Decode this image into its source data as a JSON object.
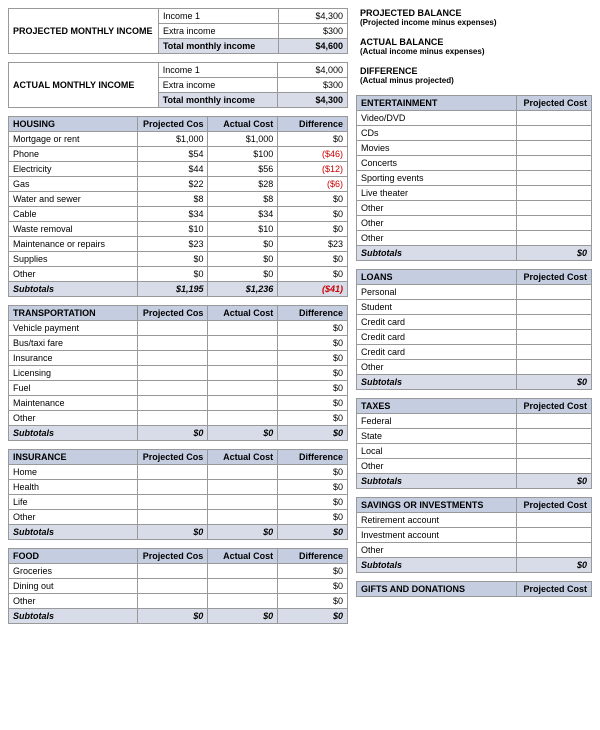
{
  "projectedIncome": {
    "label": "PROJECTED MONTHLY INCOME",
    "rows": [
      {
        "name": "Income 1",
        "value": "$4,300"
      },
      {
        "name": "Extra income",
        "value": "$300"
      }
    ],
    "totalLabel": "Total monthly income",
    "totalValue": "$4,600"
  },
  "actualIncome": {
    "label": "ACTUAL MONTHLY INCOME",
    "rows": [
      {
        "name": "Income 1",
        "value": "$4,000"
      },
      {
        "name": "Extra income",
        "value": "$300"
      }
    ],
    "totalLabel": "Total monthly income",
    "totalValue": "$4,300"
  },
  "balances": [
    {
      "title": "PROJECTED BALANCE",
      "sub": "(Projected income minus expenses)"
    },
    {
      "title": "ACTUAL BALANCE",
      "sub": "(Actual income minus expenses)"
    },
    {
      "title": "DIFFERENCE",
      "sub": "(Actual minus projected)"
    }
  ],
  "headers": {
    "projCost": "Projected Cost",
    "actCost": "Actual Cost",
    "diff": "Difference",
    "subtotals": "Subtotals"
  },
  "leftCategories": [
    {
      "name": "HOUSING",
      "rows": [
        {
          "label": "Mortgage or rent",
          "proj": "$1,000",
          "act": "$1,000",
          "diff": "$0",
          "neg": false
        },
        {
          "label": "Phone",
          "proj": "$54",
          "act": "$100",
          "diff": "($46)",
          "neg": true
        },
        {
          "label": "Electricity",
          "proj": "$44",
          "act": "$56",
          "diff": "($12)",
          "neg": true
        },
        {
          "label": "Gas",
          "proj": "$22",
          "act": "$28",
          "diff": "($6)",
          "neg": true
        },
        {
          "label": "Water and sewer",
          "proj": "$8",
          "act": "$8",
          "diff": "$0",
          "neg": false
        },
        {
          "label": "Cable",
          "proj": "$34",
          "act": "$34",
          "diff": "$0",
          "neg": false
        },
        {
          "label": "Waste removal",
          "proj": "$10",
          "act": "$10",
          "diff": "$0",
          "neg": false
        },
        {
          "label": "Maintenance or repairs",
          "proj": "$23",
          "act": "$0",
          "diff": "$23",
          "neg": false
        },
        {
          "label": "Supplies",
          "proj": "$0",
          "act": "$0",
          "diff": "$0",
          "neg": false
        },
        {
          "label": "Other",
          "proj": "$0",
          "act": "$0",
          "diff": "$0",
          "neg": false
        }
      ],
      "subProj": "$1,195",
      "subAct": "$1,236",
      "subDiff": "($41)",
      "subNeg": true
    },
    {
      "name": "TRANSPORTATION",
      "rows": [
        {
          "label": "Vehicle payment",
          "proj": "",
          "act": "",
          "diff": "$0",
          "neg": false
        },
        {
          "label": "Bus/taxi fare",
          "proj": "",
          "act": "",
          "diff": "$0",
          "neg": false
        },
        {
          "label": "Insurance",
          "proj": "",
          "act": "",
          "diff": "$0",
          "neg": false
        },
        {
          "label": "Licensing",
          "proj": "",
          "act": "",
          "diff": "$0",
          "neg": false
        },
        {
          "label": "Fuel",
          "proj": "",
          "act": "",
          "diff": "$0",
          "neg": false
        },
        {
          "label": "Maintenance",
          "proj": "",
          "act": "",
          "diff": "$0",
          "neg": false
        },
        {
          "label": "Other",
          "proj": "",
          "act": "",
          "diff": "$0",
          "neg": false
        }
      ],
      "subProj": "$0",
      "subAct": "$0",
      "subDiff": "$0",
      "subNeg": false
    },
    {
      "name": "INSURANCE",
      "rows": [
        {
          "label": "Home",
          "proj": "",
          "act": "",
          "diff": "$0",
          "neg": false
        },
        {
          "label": "Health",
          "proj": "",
          "act": "",
          "diff": "$0",
          "neg": false
        },
        {
          "label": "Life",
          "proj": "",
          "act": "",
          "diff": "$0",
          "neg": false
        },
        {
          "label": "Other",
          "proj": "",
          "act": "",
          "diff": "$0",
          "neg": false
        }
      ],
      "subProj": "$0",
      "subAct": "$0",
      "subDiff": "$0",
      "subNeg": false
    },
    {
      "name": "FOOD",
      "rows": [
        {
          "label": "Groceries",
          "proj": "",
          "act": "",
          "diff": "$0",
          "neg": false
        },
        {
          "label": "Dining out",
          "proj": "",
          "act": "",
          "diff": "$0",
          "neg": false
        },
        {
          "label": "Other",
          "proj": "",
          "act": "",
          "diff": "$0",
          "neg": false
        }
      ],
      "subProj": "$0",
      "subAct": "$0",
      "subDiff": "$0",
      "subNeg": false
    }
  ],
  "rightCategories": [
    {
      "name": "ENTERTAINMENT",
      "rows": [
        {
          "label": "Video/DVD"
        },
        {
          "label": "CDs"
        },
        {
          "label": "Movies"
        },
        {
          "label": "Concerts"
        },
        {
          "label": "Sporting events"
        },
        {
          "label": "Live theater"
        },
        {
          "label": "Other"
        },
        {
          "label": "Other"
        },
        {
          "label": "Other"
        }
      ],
      "subProj": "$0"
    },
    {
      "name": "LOANS",
      "rows": [
        {
          "label": "Personal"
        },
        {
          "label": "Student"
        },
        {
          "label": "Credit card"
        },
        {
          "label": "Credit card"
        },
        {
          "label": "Credit card"
        },
        {
          "label": "Other"
        }
      ],
      "subProj": "$0"
    },
    {
      "name": "TAXES",
      "rows": [
        {
          "label": "Federal"
        },
        {
          "label": "State"
        },
        {
          "label": "Local"
        },
        {
          "label": "Other"
        }
      ],
      "subProj": "$0"
    },
    {
      "name": "SAVINGS OR INVESTMENTS",
      "rows": [
        {
          "label": "Retirement account"
        },
        {
          "label": "Investment account"
        },
        {
          "label": "Other"
        }
      ],
      "subProj": "$0"
    },
    {
      "name": "GIFTS AND DONATIONS",
      "rows": [],
      "subProj": ""
    }
  ],
  "colors": {
    "headerBg": "#c5cde0",
    "subBg": "#d8dce8",
    "border": "#999999",
    "negative": "#cc0000",
    "text": "#000000",
    "background": "#ffffff"
  }
}
